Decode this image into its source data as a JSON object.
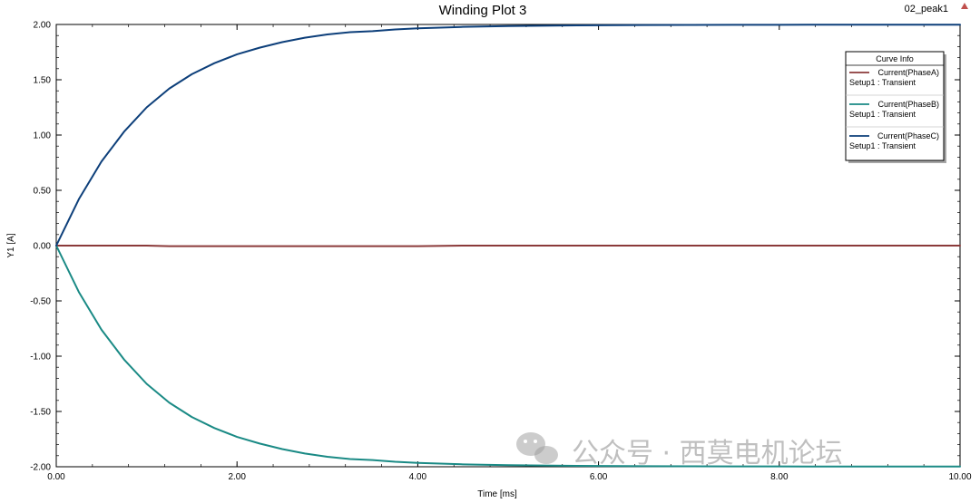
{
  "chart_data": {
    "type": "line",
    "title": "Winding Plot 3",
    "plot_name": "02_peak1",
    "xlabel": "Time [ms]",
    "ylabel": "Y1 [A]",
    "xlim": [
      0,
      10
    ],
    "ylim": [
      -2,
      2
    ],
    "x_ticks": [
      "0.00",
      "2.00",
      "4.00",
      "6.00",
      "8.00",
      "10.00"
    ],
    "y_ticks": [
      "2.00",
      "1.50",
      "1.00",
      "0.50",
      "0.00",
      "-0.50",
      "-1.00",
      "-1.50",
      "-2.00"
    ],
    "grid": false,
    "legend": {
      "title": "Curve Info",
      "placement": "top-right",
      "entries": [
        {
          "name": "Current(PhaseA)",
          "sub": "Setup1 : Transient",
          "color": "#8b3a3a"
        },
        {
          "name": "Current(PhaseB)",
          "sub": "Setup1 : Transient",
          "color": "#1a8a85"
        },
        {
          "name": "Current(PhaseC)",
          "sub": "Setup1 : Transient",
          "color": "#0d3f7a"
        }
      ]
    },
    "x": [
      0,
      0.25,
      0.5,
      0.75,
      1,
      1.25,
      1.5,
      1.75,
      2,
      2.25,
      2.5,
      2.75,
      3,
      3.25,
      3.5,
      3.75,
      4,
      4.5,
      5,
      5.5,
      6,
      6.5,
      7,
      7.5,
      8,
      8.5,
      9,
      9.5,
      10
    ],
    "series": [
      {
        "name": "Current(PhaseA)",
        "color": "#8b3a3a",
        "values": [
          0,
          0,
          0,
          0,
          0,
          -0.005,
          -0.005,
          -0.005,
          -0.005,
          -0.005,
          -0.005,
          -0.005,
          -0.005,
          -0.005,
          -0.005,
          -0.005,
          -0.005,
          0,
          0,
          0,
          0,
          0,
          0,
          0,
          0,
          0,
          0,
          0,
          0
        ]
      },
      {
        "name": "Current(PhaseB)",
        "color": "#1a8a85",
        "values": [
          0,
          -0.42,
          -0.76,
          -1.03,
          -1.25,
          -1.42,
          -1.55,
          -1.65,
          -1.73,
          -1.79,
          -1.84,
          -1.88,
          -1.91,
          -1.93,
          -1.94,
          -1.955,
          -1.965,
          -1.978,
          -1.986,
          -1.99,
          -1.993,
          -1.995,
          -1.996,
          -1.997,
          -1.997,
          -1.998,
          -1.998,
          -1.998,
          -1.998
        ]
      },
      {
        "name": "Current(PhaseC)",
        "color": "#0d3f7a",
        "values": [
          0,
          0.42,
          0.76,
          1.03,
          1.25,
          1.42,
          1.55,
          1.65,
          1.73,
          1.79,
          1.84,
          1.88,
          1.91,
          1.93,
          1.94,
          1.955,
          1.965,
          1.978,
          1.986,
          1.99,
          1.993,
          1.995,
          1.996,
          1.997,
          1.997,
          1.998,
          1.998,
          1.998,
          1.998
        ]
      }
    ]
  },
  "watermark": {
    "text": "公众号 · 西莫电机论坛",
    "icon": "wechat-icon"
  },
  "marker_icon": "triangle-marker-icon"
}
